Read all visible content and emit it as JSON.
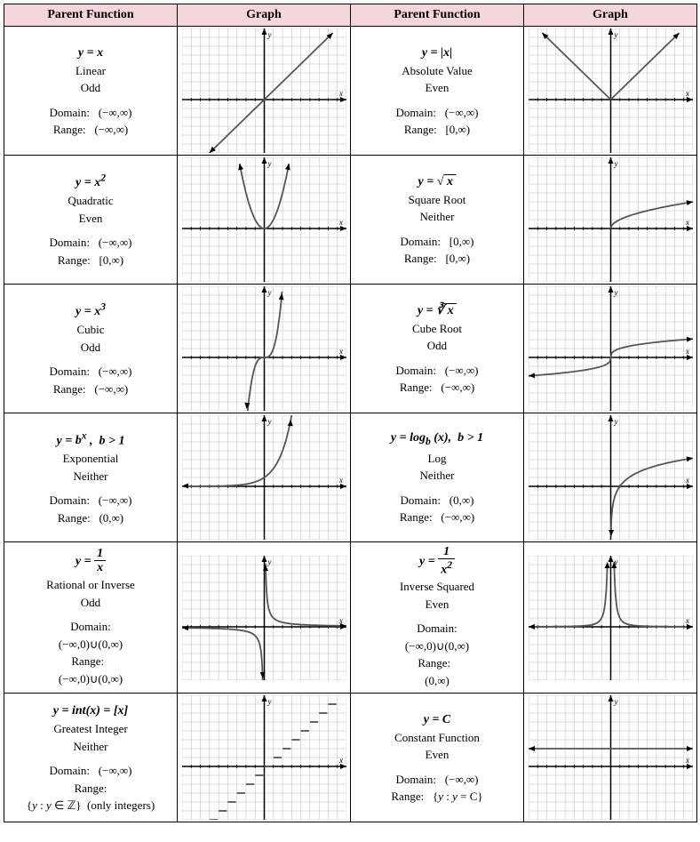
{
  "headers": {
    "pf": "Parent Function",
    "g": "Graph"
  },
  "rows": [
    [
      {
        "eq_html": "<i>y</i> = <i>x</i>",
        "name": "Linear",
        "sym": "Odd",
        "domain": "(−∞,∞)",
        "range": "(−∞,∞)",
        "graph": "linear"
      },
      {
        "eq_html": "<i>y</i> = |<i>x</i>|",
        "name": "Absolute Value",
        "sym": "Even",
        "domain": "(−∞,∞)",
        "range": "[0,∞)",
        "graph": "abs"
      }
    ],
    [
      {
        "eq_html": "<i>y</i> = <i>x</i><sup>2</sup>",
        "name": "Quadratic",
        "sym": "Even",
        "domain": "(−∞,∞)",
        "range": "[0,∞)",
        "graph": "quad"
      },
      {
        "eq_html": "<i>y</i> = √<span style='text-decoration:overline'>&nbsp;x&nbsp;</span>",
        "name": "Square Root",
        "sym": "Neither",
        "domain": "[0,∞)",
        "range": "[0,∞)",
        "graph": "sqrt"
      }
    ],
    [
      {
        "eq_html": "<i>y</i> = <i>x</i><sup>3</sup>",
        "name": "Cubic",
        "sym": "Odd",
        "domain": "(−∞,∞)",
        "range": "(−∞,∞)",
        "graph": "cubic"
      },
      {
        "eq_html": "<i>y</i> = ∛<span style='text-decoration:overline'>&nbsp;x&nbsp;</span>",
        "name": "Cube Root",
        "sym": "Odd",
        "domain": "(−∞,∞)",
        "range": "(−∞,∞)",
        "graph": "cbrt"
      }
    ],
    [
      {
        "eq_html": "<i>y</i> = <i>b<sup>x</sup></i> ,&nbsp; <i>b</i> &gt; 1",
        "name": "Exponential",
        "sym": "Neither",
        "domain": "(−∞,∞)",
        "range": "(0,∞)",
        "graph": "exp"
      },
      {
        "eq_html": "<i>y</i> = <b>log</b><sub><i>b</i></sub> (<i>x</i>),&nbsp; <i>b</i> &gt; 1",
        "name": "Log",
        "sym": "Neither",
        "domain": "(0,∞)",
        "range": "(−∞,∞)",
        "graph": "log"
      }
    ],
    [
      {
        "eq_html": "<i>y</i> = <span class='frac'><span class='num'>1</span><span class='den'><i>x</i></span></span>",
        "name": "Rational or Inverse",
        "sym": "Odd",
        "domain_label": "Domain:",
        "domain": "(−∞,0)∪(0,∞)",
        "range_label": "Range:&nbsp;&nbsp;",
        "range": "(−∞,0)∪(0,∞)",
        "graph": "recip",
        "stack": true
      },
      {
        "eq_html": "<i>y</i> = <span class='frac'><span class='num'>1</span><span class='den'><i>x</i><sup>2</sup></span></span>",
        "name": "Inverse Squared",
        "sym": "Even",
        "domain_label": "Domain:",
        "domain": "(−∞,0)∪(0,∞)",
        "range_label": "Range:&nbsp;&nbsp;",
        "range": "(0,∞)",
        "graph": "recip2",
        "stack": true
      }
    ],
    [
      {
        "eq_html": "<i>y</i> = <b>int</b>(<i>x</i>) = [<i>x</i>]",
        "name": "Greatest Integer",
        "sym": "Neither",
        "domain": "(−∞,∞)",
        "range_label": "Range:",
        "range": "{<i>y</i> : <i>y</i> ∈ ℤ}&nbsp;&nbsp;(only integers)",
        "graph": "floor",
        "stack_range": true
      },
      {
        "eq_html": "<i>y</i> = C",
        "name": "Constant Function",
        "sym": "Even",
        "domain": "(−∞,∞)",
        "range_label": "Range:&nbsp;&nbsp;",
        "range": "{<i>y</i> : <i>y</i> = C}",
        "graph": "const"
      }
    ]
  ],
  "graph_style": {
    "width": 185,
    "height": 140,
    "xmin": -9,
    "xmax": 9,
    "ymin": -6,
    "ymax": 8,
    "grid_color": "#bbbbbb",
    "axis_color": "#000000",
    "curve_color": "#555555",
    "axis_label_font": "italic 10px serif"
  }
}
